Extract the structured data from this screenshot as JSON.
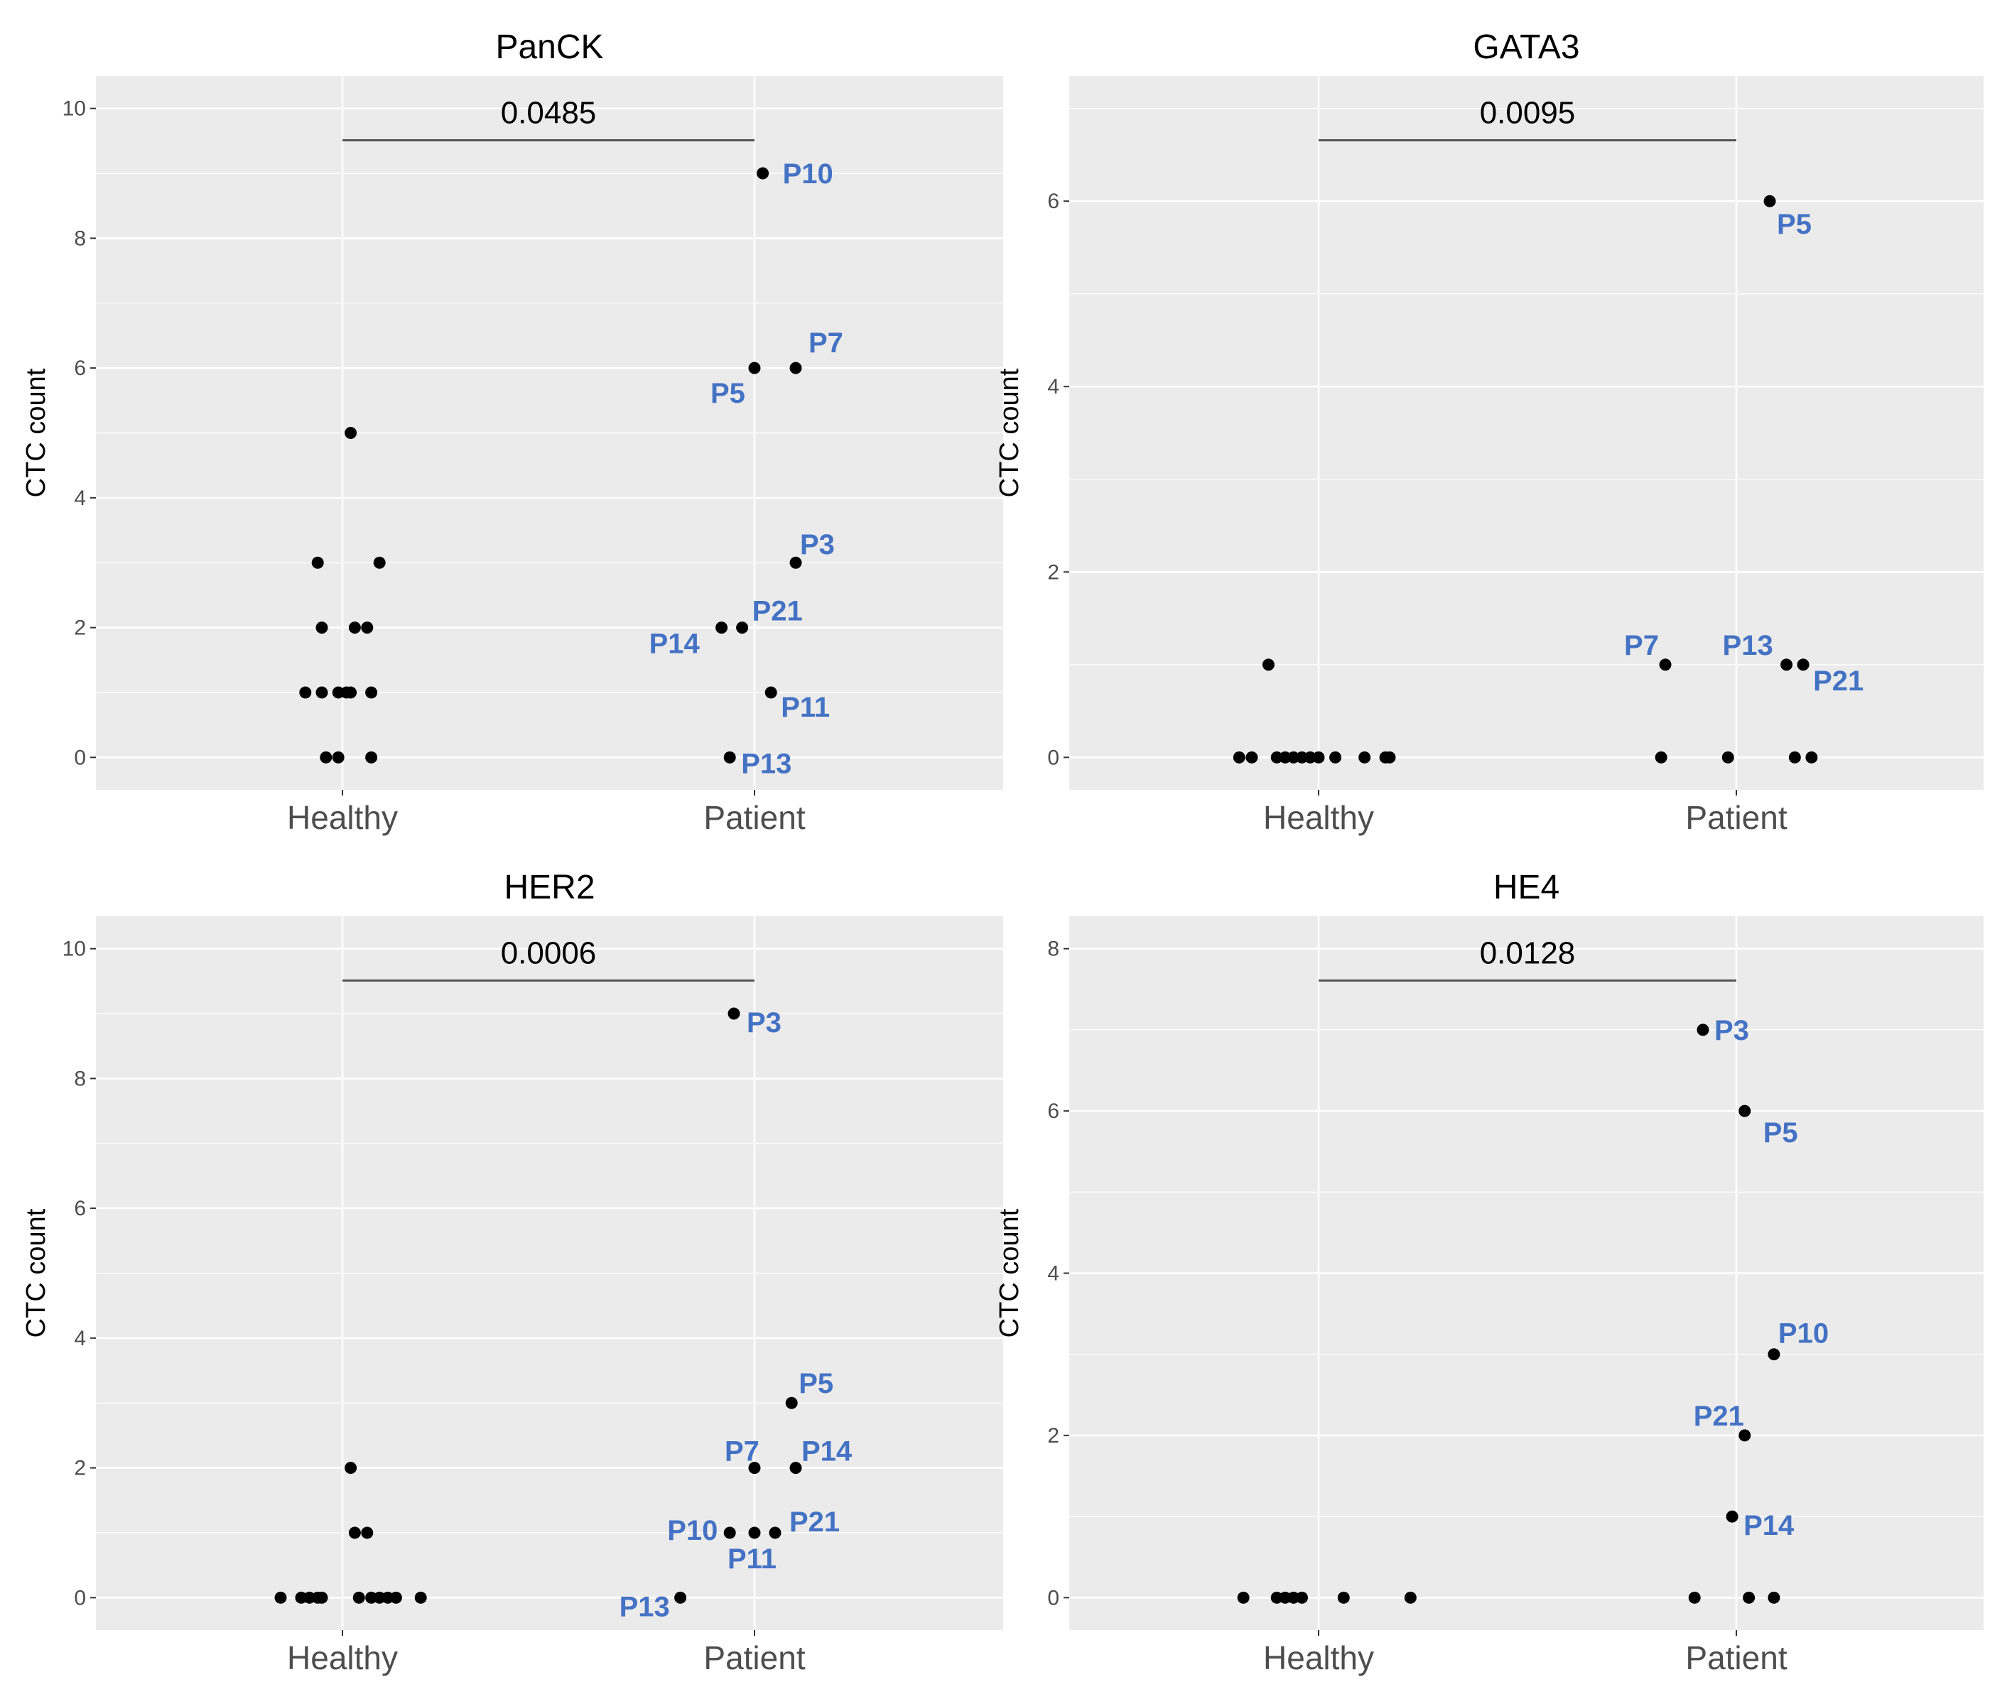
{
  "colors": {
    "panel_bg": "#ebebeb",
    "grid": "#ffffff",
    "point": "#000000",
    "label": "#4472c4",
    "tick_text": "#4d4d4d"
  },
  "chart_data": [
    {
      "type": "scatter",
      "title": "PanCK",
      "xlabel": "",
      "ylabel": "CTC count",
      "categories": [
        "Healthy",
        "Patient"
      ],
      "ylim": [
        -0.5,
        10.5
      ],
      "yticks": [
        0,
        2,
        4,
        6,
        8,
        10
      ],
      "p_value": "0.0485",
      "series": [
        {
          "name": "Healthy",
          "points": [
            {
              "y": 5,
              "j": 0.02
            },
            {
              "y": 3,
              "j": -0.06
            },
            {
              "y": 3,
              "j": 0.09
            },
            {
              "y": 2,
              "j": -0.05
            },
            {
              "y": 2,
              "j": 0.03
            },
            {
              "y": 2,
              "j": 0.06
            },
            {
              "y": 1,
              "j": -0.09
            },
            {
              "y": 1,
              "j": -0.05
            },
            {
              "y": 1,
              "j": -0.01
            },
            {
              "y": 1,
              "j": 0.01
            },
            {
              "y": 1,
              "j": 0.02
            },
            {
              "y": 1,
              "j": 0.07
            },
            {
              "y": 0,
              "j": -0.04
            },
            {
              "y": 0,
              "j": -0.01
            },
            {
              "y": 0,
              "j": 0.07
            }
          ]
        },
        {
          "name": "Patient",
          "points": [
            {
              "y": 9,
              "j": 0.02,
              "label": "P10"
            },
            {
              "y": 6,
              "j": 0.0,
              "label": "P5"
            },
            {
              "y": 6,
              "j": 0.1,
              "label": "P7"
            },
            {
              "y": 3,
              "j": 0.1,
              "label": "P3"
            },
            {
              "y": 2,
              "j": -0.08,
              "label": "P14"
            },
            {
              "y": 2,
              "j": -0.03,
              "label": "P21"
            },
            {
              "y": 1,
              "j": 0.04,
              "label": "P11"
            },
            {
              "y": 0,
              "j": -0.06,
              "label": "P13"
            }
          ]
        }
      ]
    },
    {
      "type": "scatter",
      "title": "GATA3",
      "xlabel": "",
      "ylabel": "CTC count",
      "categories": [
        "Healthy",
        "Patient"
      ],
      "ylim": [
        -0.35,
        7.35
      ],
      "yticks": [
        0,
        2,
        4,
        6
      ],
      "p_value": "0.0095",
      "series": [
        {
          "name": "Healthy",
          "points": [
            {
              "y": 1,
              "j": -0.12
            },
            {
              "y": 0,
              "j": -0.19
            },
            {
              "y": 0,
              "j": -0.16
            },
            {
              "y": 0,
              "j": -0.1
            },
            {
              "y": 0,
              "j": -0.08
            },
            {
              "y": 0,
              "j": -0.06
            },
            {
              "y": 0,
              "j": -0.04
            },
            {
              "y": 0,
              "j": -0.02
            },
            {
              "y": 0,
              "j": 0.0
            },
            {
              "y": 0,
              "j": 0.04
            },
            {
              "y": 0,
              "j": 0.11
            },
            {
              "y": 0,
              "j": 0.16
            },
            {
              "y": 0,
              "j": 0.17
            }
          ]
        },
        {
          "name": "Patient",
          "points": [
            {
              "y": 6,
              "j": 0.08,
              "label": "P5"
            },
            {
              "y": 1,
              "j": -0.17,
              "label": "P7"
            },
            {
              "y": 1,
              "j": 0.12,
              "label": "P13"
            },
            {
              "y": 1,
              "j": 0.16,
              "label": "P21"
            },
            {
              "y": 0,
              "j": -0.18
            },
            {
              "y": 0,
              "j": -0.02
            },
            {
              "y": 0,
              "j": 0.14
            },
            {
              "y": 0,
              "j": 0.18
            }
          ]
        }
      ]
    },
    {
      "type": "scatter",
      "title": "HER2",
      "xlabel": "",
      "ylabel": "CTC count",
      "categories": [
        "Healthy",
        "Patient"
      ],
      "ylim": [
        -0.5,
        10.5
      ],
      "yticks": [
        0,
        2,
        4,
        6,
        8,
        10
      ],
      "p_value": "0.0006",
      "series": [
        {
          "name": "Healthy",
          "points": [
            {
              "y": 2,
              "j": 0.02
            },
            {
              "y": 1,
              "j": 0.03
            },
            {
              "y": 1,
              "j": 0.06
            },
            {
              "y": 0,
              "j": -0.15
            },
            {
              "y": 0,
              "j": -0.1
            },
            {
              "y": 0,
              "j": -0.08
            },
            {
              "y": 0,
              "j": -0.06
            },
            {
              "y": 0,
              "j": -0.05
            },
            {
              "y": 0,
              "j": 0.04
            },
            {
              "y": 0,
              "j": 0.07
            },
            {
              "y": 0,
              "j": 0.09
            },
            {
              "y": 0,
              "j": 0.11
            },
            {
              "y": 0,
              "j": 0.13
            },
            {
              "y": 0,
              "j": 0.19
            }
          ]
        },
        {
          "name": "Patient",
          "points": [
            {
              "y": 9,
              "j": -0.05,
              "label": "P3"
            },
            {
              "y": 3,
              "j": 0.09,
              "label": "P5"
            },
            {
              "y": 2,
              "j": 0.0,
              "label": "P7"
            },
            {
              "y": 2,
              "j": 0.1,
              "label": "P14"
            },
            {
              "y": 1,
              "j": -0.06,
              "label": "P10"
            },
            {
              "y": 1,
              "j": 0.0,
              "label": "P11"
            },
            {
              "y": 1,
              "j": 0.05,
              "label": "P21"
            },
            {
              "y": 0,
              "j": -0.18,
              "label": "P13"
            }
          ]
        }
      ]
    },
    {
      "type": "scatter",
      "title": "HE4",
      "xlabel": "",
      "ylabel": "CTC count",
      "categories": [
        "Healthy",
        "Patient"
      ],
      "ylim": [
        -0.4,
        8.4
      ],
      "yticks": [
        0,
        2,
        4,
        6,
        8
      ],
      "p_value": "0.0128",
      "series": [
        {
          "name": "Healthy",
          "points": [
            {
              "y": 0,
              "j": -0.18
            },
            {
              "y": 0,
              "j": -0.1
            },
            {
              "y": 0,
              "j": -0.08
            },
            {
              "y": 0,
              "j": -0.06
            },
            {
              "y": 0,
              "j": -0.04
            },
            {
              "y": 0,
              "j": 0.06
            },
            {
              "y": 0,
              "j": 0.22
            }
          ]
        },
        {
          "name": "Patient",
          "points": [
            {
              "y": 7,
              "j": -0.08,
              "label": "P3"
            },
            {
              "y": 6,
              "j": 0.02,
              "label": "P5"
            },
            {
              "y": 3,
              "j": 0.09,
              "label": "P10"
            },
            {
              "y": 2,
              "j": 0.02,
              "label": "P21"
            },
            {
              "y": 1,
              "j": -0.01,
              "label": "P14"
            },
            {
              "y": 0,
              "j": -0.1
            },
            {
              "y": 0,
              "j": 0.03
            },
            {
              "y": 0,
              "j": 0.09
            }
          ]
        }
      ]
    }
  ]
}
